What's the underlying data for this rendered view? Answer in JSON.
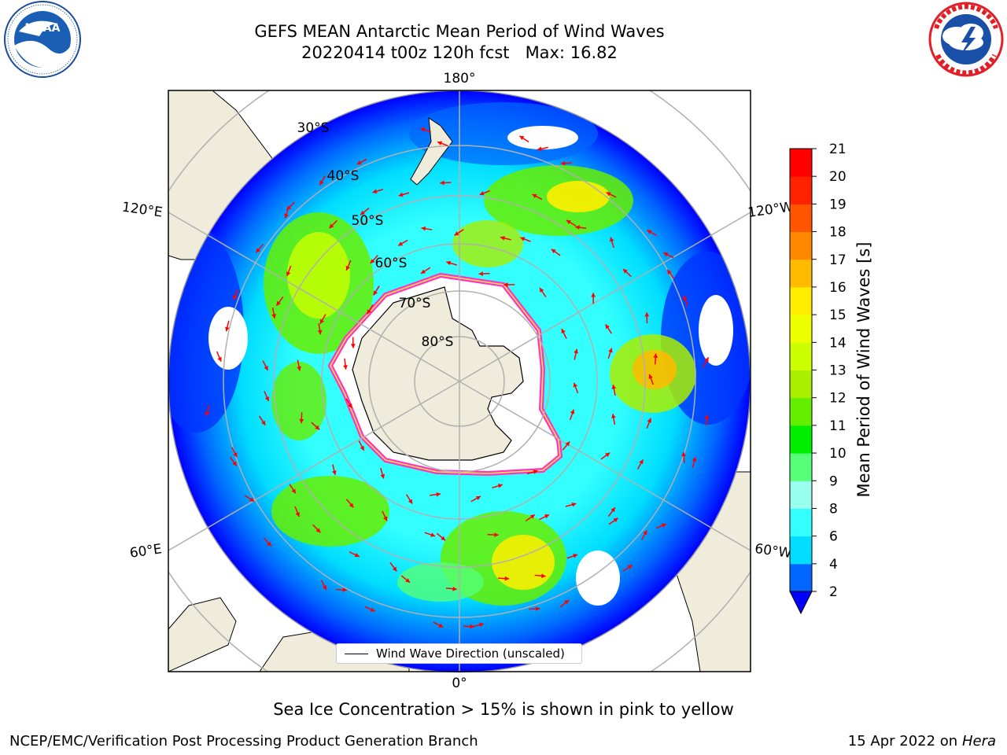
{
  "header": {
    "title_line1": "GEFS MEAN Antarctic Mean Period of Wind Waves",
    "title_line2": "20220414 t00z 120h fcst   Max: 16.82"
  },
  "logos": {
    "left": {
      "name": "noaa-logo",
      "text": "NOAA",
      "ring_text": "NATIONAL OCEANIC AND ATMOSPHERIC ADMINISTRATION · U.S. DEPARTMENT OF COMMERCE"
    },
    "right": {
      "name": "nws-logo",
      "ring_text": "NATIONAL WEATHER SERVICE"
    }
  },
  "map": {
    "projection": "south-polar-stereographic",
    "center_lon_bottom": "0°",
    "longitude_labels": [
      "180°",
      "120°E",
      "120°W",
      "60°E",
      "60°W",
      "0°"
    ],
    "latitude_labels": [
      "30°S",
      "40°S",
      "50°S",
      "60°S",
      "70°S",
      "80°S"
    ],
    "legend_label": "Wind Wave Direction (unscaled)",
    "colors": {
      "land": "#efecdc",
      "ice_edge_pink": "#ff33cc",
      "ice_edge_yellow": "#ffee33",
      "arrow": "#ff0000",
      "grid": "#b0b0b0"
    }
  },
  "colorbar": {
    "title": "Mean Period of Wind Waves [s]",
    "ticks": [
      "21",
      "20",
      "19",
      "18",
      "17",
      "16",
      "15",
      "14",
      "13",
      "12",
      "11",
      "10",
      "9",
      "8",
      "6",
      "4",
      "2"
    ],
    "levels": [
      2,
      4,
      6,
      8,
      9,
      10,
      11,
      12,
      13,
      14,
      15,
      16,
      17,
      18,
      19,
      20,
      21
    ],
    "colors": [
      "#0066ff",
      "#00ddff",
      "#33ffff",
      "#99ffee",
      "#55ff77",
      "#00ee00",
      "#66ee00",
      "#aaee00",
      "#ccff00",
      "#eeff00",
      "#ffee00",
      "#ffbb00",
      "#ff8800",
      "#ff5500",
      "#ff2200",
      "#ff0000"
    ],
    "under_color": "#0000ff"
  },
  "notes": {
    "ice": "Sea Ice Concentration > 15% is shown in pink to yellow"
  },
  "footer": {
    "left": "NCEP/EMC/Verification Post Processing Product Generation Branch",
    "right_prefix": "15 Apr 2022 on ",
    "right_machine": "Hera"
  }
}
